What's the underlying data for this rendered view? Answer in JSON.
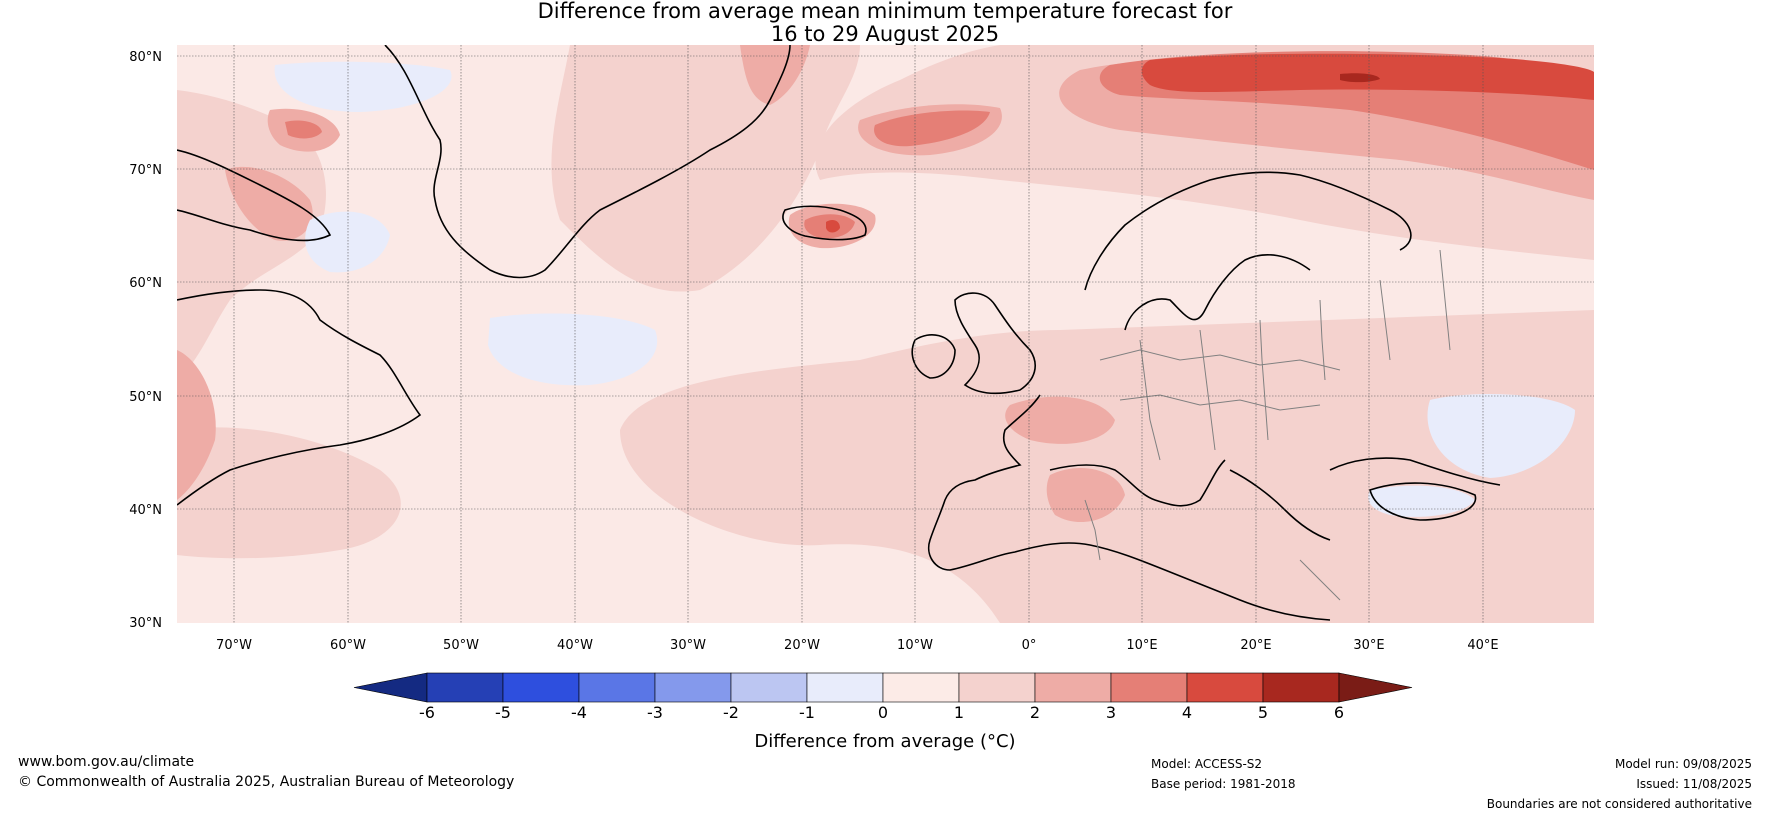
{
  "title": {
    "line1": "Difference from average mean minimum temperature forecast for",
    "line2": "16 to 29 August 2025"
  },
  "map": {
    "lat_labels": [
      "80°N",
      "70°N",
      "60°N",
      "50°N",
      "40°N",
      "30°N"
    ],
    "lon_labels": [
      "70°W",
      "60°W",
      "50°W",
      "40°W",
      "30°W",
      "20°W",
      "10°W",
      "0°",
      "10°E",
      "20°E",
      "30°E",
      "40°E"
    ],
    "background_color": "#fbe9e6",
    "coastline_color": "#000000",
    "border_color": "#808080"
  },
  "colorbar": {
    "title": "Difference from average (°C)",
    "tick_labels": [
      "-6",
      "-5",
      "-4",
      "-3",
      "-2",
      "-1",
      "0",
      "1",
      "2",
      "3",
      "4",
      "5",
      "6"
    ],
    "colors": [
      "#142a82",
      "#2540b5",
      "#2e4fde",
      "#5a76e6",
      "#8499ec",
      "#bcc6f2",
      "#e8ecfb",
      "#fcebe7",
      "#f4d2ce",
      "#eeaca6",
      "#e57f76",
      "#d84a3e",
      "#a8281f",
      "#7a1c16"
    ]
  },
  "footer": {
    "website": "www.bom.gov.au/climate",
    "copyright": "© Commonwealth of Australia 2025, Australian Bureau of Meteorology",
    "model": "Model: ACCESS-S2",
    "base_period": "Base period: 1981-2018",
    "model_run": "Model run: 09/08/2025",
    "issued": "Issued: 11/08/2025",
    "disclaimer": "Boundaries are not considered authoritative"
  }
}
